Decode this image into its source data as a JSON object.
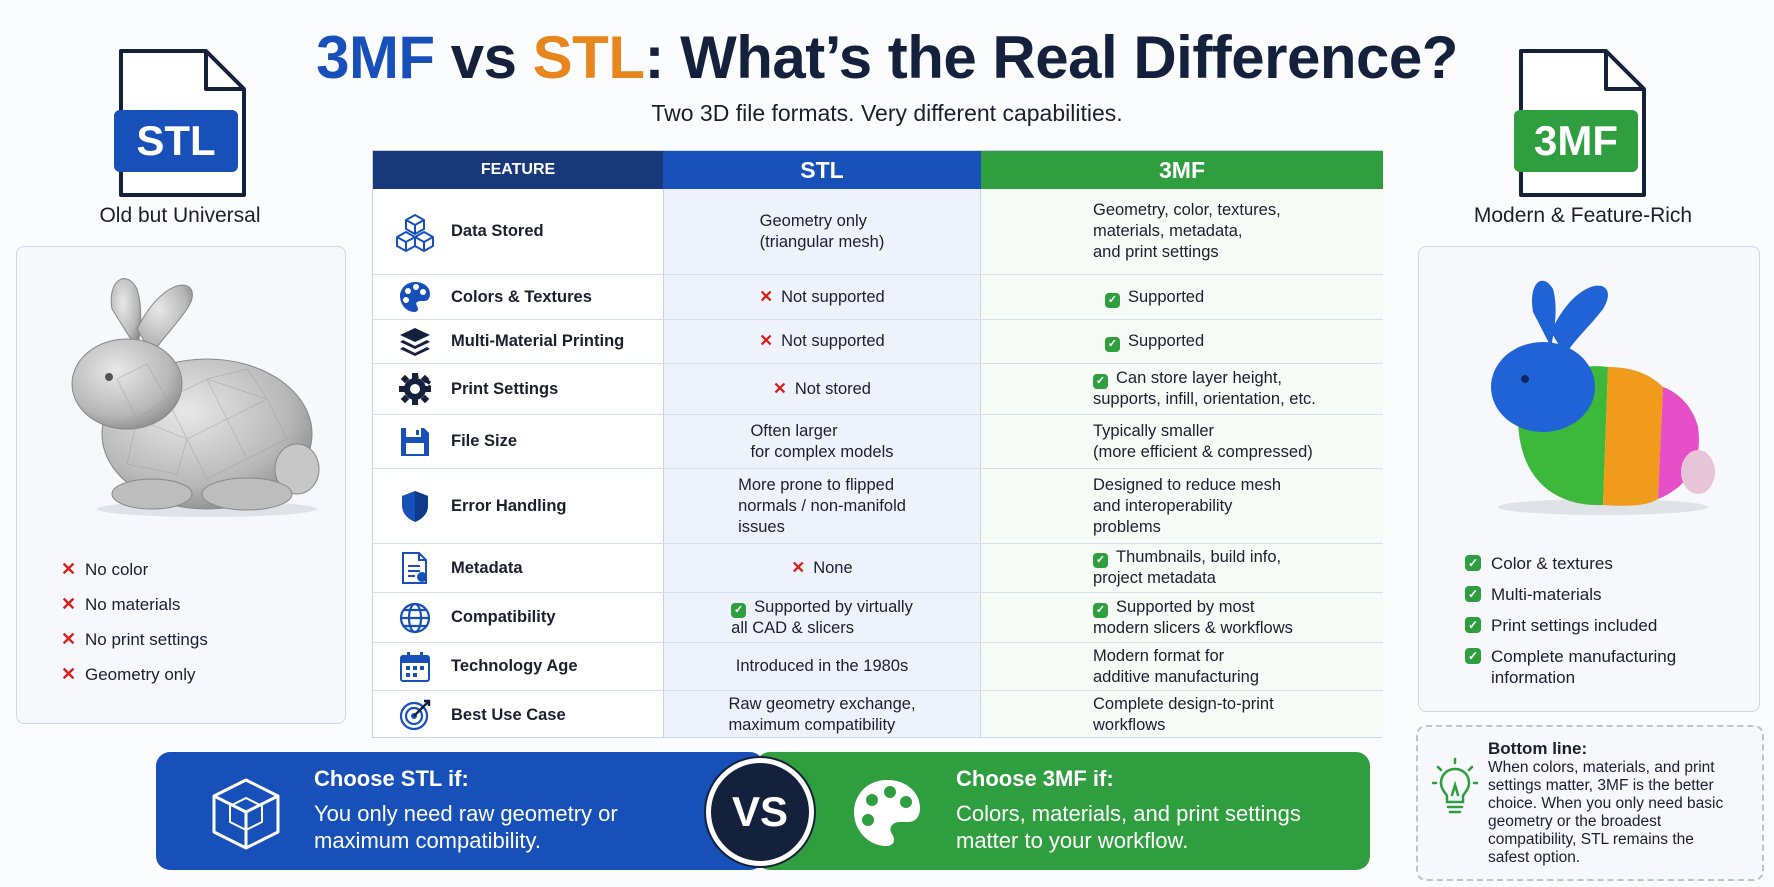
{
  "title": {
    "part1": "3MF",
    "part2": " vs ",
    "part3": "STL",
    "part4": ": What’s the Real Difference?"
  },
  "subtitle": "Two 3D file formats. Very different capabilities.",
  "colors": {
    "stl_blue": "#1650b8",
    "mf_green": "#2e9e3e",
    "orange": "#e8861e",
    "navy": "#14213d",
    "cross_red": "#d4211c"
  },
  "left": {
    "file_badge": "STL",
    "caption": "Old but Universal",
    "image": "gray-bunny-mesh",
    "items": [
      "No color",
      "No materials",
      "No print settings",
      "Geometry only"
    ]
  },
  "right": {
    "file_badge": "3MF",
    "caption": "Modern & Feature-Rich",
    "image": "multicolor-bunny-mesh",
    "items": [
      "Color & textures",
      "Multi-materials",
      "Print settings included",
      "Complete manufacturing information"
    ]
  },
  "table": {
    "headers": [
      "FEATURE",
      "STL",
      "3MF"
    ],
    "rows": [
      {
        "icon": "cubes-icon",
        "feature": "Data Stored",
        "stl": "Geometry only\n(triangular mesh)",
        "stl_mark": "",
        "mf": "Geometry, color, textures,\nmaterials, metadata,\nand print settings",
        "mf_mark": ""
      },
      {
        "icon": "palette-icon",
        "feature": "Colors & Textures",
        "stl": "Not supported",
        "stl_mark": "x",
        "mf": "Supported",
        "mf_mark": "check"
      },
      {
        "icon": "layers-icon",
        "feature": "Multi-Material Printing",
        "stl": "Not supported",
        "stl_mark": "x",
        "mf": "Supported",
        "mf_mark": "check"
      },
      {
        "icon": "gear-icon",
        "feature": "Print Settings",
        "stl": "Not stored",
        "stl_mark": "x",
        "mf": "Can store layer height,\nsupports, infill, orientation, etc.",
        "mf_mark": "check"
      },
      {
        "icon": "floppy-disk-icon",
        "feature": "File Size",
        "stl": "Often larger\nfor complex models",
        "stl_mark": "",
        "mf": "Typically smaller\n(more efficient & compressed)",
        "mf_mark": ""
      },
      {
        "icon": "shield-icon",
        "feature": "Error Handling",
        "stl": "More prone to flipped\nnormals / non-manifold\nissues",
        "stl_mark": "",
        "mf": "Designed to reduce mesh\nand interoperability\nproblems",
        "mf_mark": ""
      },
      {
        "icon": "document-icon",
        "feature": "Metadata",
        "stl": "None",
        "stl_mark": "x",
        "mf": "Thumbnails, build info,\nproject metadata",
        "mf_mark": "check"
      },
      {
        "icon": "globe-icon",
        "feature": "Compatibility",
        "stl": "Supported by virtually\nall CAD & slicers",
        "stl_mark": "check",
        "mf": "Supported by most\nmodern slicers & workflows",
        "mf_mark": "check"
      },
      {
        "icon": "calendar-icon",
        "feature": "Technology Age",
        "stl": "Introduced in the 1980s",
        "stl_mark": "",
        "mf": "Modern format for\nadditive manufacturing",
        "mf_mark": ""
      },
      {
        "icon": "target-icon",
        "feature": "Best Use Case",
        "stl": "Raw geometry exchange,\nmaximum compatibility",
        "stl_mark": "",
        "mf": "Complete design-to-print\nworkflows",
        "mf_mark": ""
      }
    ]
  },
  "choose_stl": {
    "title": "Choose STL if:",
    "text": "You only need raw geometry or\nmaximum compatibility.",
    "icon": "cube-wireframe-icon"
  },
  "choose_3mf": {
    "title": "Choose 3MF if:",
    "text": "Colors, materials, and print settings\nmatter to your workflow.",
    "icon": "palette-icon"
  },
  "vs_label": "VS",
  "bottom_line": {
    "title": "Bottom line:",
    "text": "When colors, materials, and print settings matter, 3MF is the better choice. When you only need basic geometry or the broadest compatibility, STL remains the safest option.",
    "icon": "lightbulb-icon"
  }
}
